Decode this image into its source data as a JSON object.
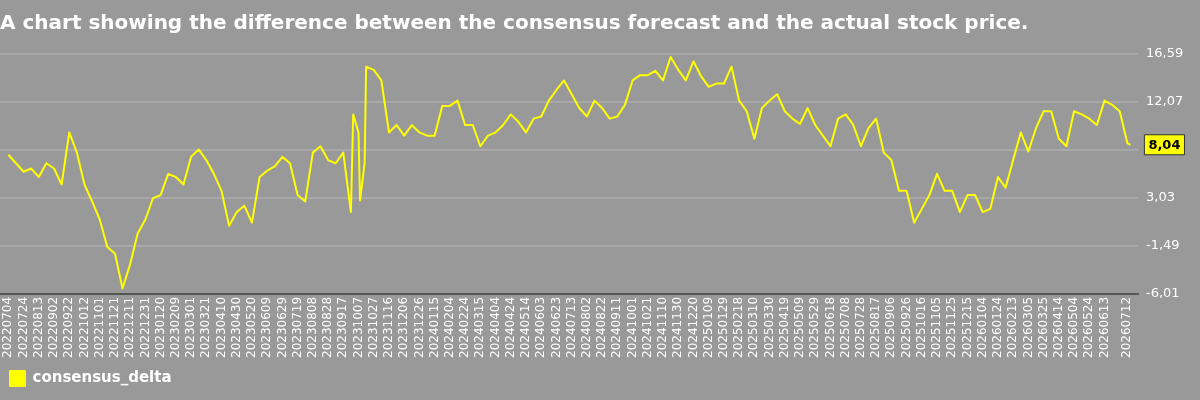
{
  "chart_data": {
    "type": "line",
    "title": "A chart showing the difference between the consensus forecast and the actual stock price.",
    "x": [
      "2022-07-04",
      "2022-07-14",
      "2022-07-24",
      "2022-08-03",
      "2022-08-13",
      "2022-08-23",
      "2022-09-02",
      "2022-09-12",
      "2022-09-22",
      "2022-10-02",
      "2022-10-12",
      "2022-10-22",
      "2022-11-01",
      "2022-11-11",
      "2022-11-21",
      "2022-12-01",
      "2022-12-11",
      "2022-12-21",
      "2022-12-31",
      "2023-01-10",
      "2023-01-20",
      "2023-01-30",
      "2023-02-09",
      "2023-02-19",
      "2023-03-01",
      "2023-03-11",
      "2023-03-21",
      "2023-03-31",
      "2023-04-10",
      "2023-04-20",
      "2023-04-30",
      "2023-05-10",
      "2023-05-20",
      "2023-05-30",
      "2023-06-09",
      "2023-06-19",
      "2023-06-29",
      "2023-07-09",
      "2023-07-19",
      "2023-07-29",
      "2023-08-08",
      "2023-08-18",
      "2023-08-28",
      "2023-09-07",
      "2023-09-17",
      "2023-09-27",
      "2023-09-30",
      "2023-10-07",
      "2023-10-09",
      "2023-10-15",
      "2023-10-17",
      "2023-10-27",
      "2023-11-06",
      "2023-11-16",
      "2023-11-26",
      "2023-12-06",
      "2023-12-16",
      "2023-12-26",
      "2024-01-05",
      "2024-01-15",
      "2024-01-25",
      "2024-02-04",
      "2024-02-14",
      "2024-02-24",
      "2024-03-05",
      "2024-03-15",
      "2024-03-25",
      "2024-04-04",
      "2024-04-14",
      "2024-04-24",
      "2024-05-04",
      "2024-05-14",
      "2024-05-24",
      "2024-06-03",
      "2024-06-13",
      "2024-06-23",
      "2024-07-03",
      "2024-07-13",
      "2024-07-23",
      "2024-08-02",
      "2024-08-12",
      "2024-08-22",
      "2024-09-01",
      "2024-09-11",
      "2024-09-21",
      "2024-10-01",
      "2024-10-11",
      "2024-10-21",
      "2024-10-31",
      "2024-11-10",
      "2024-11-20",
      "2024-11-30",
      "2024-12-10",
      "2024-12-20",
      "2024-12-30",
      "2025-01-09",
      "2025-01-19",
      "2025-01-29",
      "2025-02-08",
      "2025-02-18",
      "2025-02-28",
      "2025-03-10",
      "2025-03-20",
      "2025-03-30",
      "2025-04-09",
      "2025-04-19",
      "2025-04-29",
      "2025-05-09",
      "2025-05-19",
      "2025-05-29",
      "2025-06-08",
      "2025-06-18",
      "2025-06-28",
      "2025-07-08",
      "2025-07-18",
      "2025-07-28",
      "2025-08-07",
      "2025-08-17",
      "2025-08-27",
      "2025-09-06",
      "2025-09-16",
      "2025-09-26",
      "2025-10-06",
      "2025-10-16",
      "2025-10-26",
      "2025-11-05",
      "2025-11-15",
      "2025-11-25",
      "2025-12-05",
      "2025-12-15",
      "2025-12-25",
      "2026-01-04",
      "2026-01-14",
      "2026-01-24",
      "2026-02-03",
      "2026-02-13",
      "2026-02-23",
      "2026-03-05",
      "2026-03-15",
      "2026-03-25",
      "2026-04-04",
      "2026-04-14",
      "2026-04-24",
      "2026-05-04",
      "2026-05-14",
      "2026-05-24",
      "2026-06-03",
      "2026-06-13",
      "2026-06-23",
      "2026-07-03",
      "2026-07-13",
      "2026-07-17"
    ],
    "series": [
      {
        "name": "consensus_delta",
        "color": "#ffff00",
        "values": [
          7.1,
          6.3,
          5.5,
          5.8,
          5,
          6.3,
          5.8,
          4.3,
          9.2,
          7.3,
          4.3,
          2.7,
          1,
          -1.6,
          -2.2,
          -5.5,
          -3.2,
          -0.3,
          1,
          3,
          3.3,
          5.3,
          5,
          4.3,
          6.9,
          7.6,
          6.6,
          5.3,
          3.7,
          0.4,
          1.7,
          2.3,
          0.7,
          5,
          5.6,
          6,
          6.9,
          6.3,
          3.3,
          2.7,
          7.3,
          7.9,
          6.6,
          6.3,
          7.3,
          1.7,
          10.9,
          9.2,
          2.8,
          6.3,
          15.4,
          15.1,
          14.1,
          9.2,
          9.9,
          8.9,
          9.9,
          9.2,
          8.9,
          8.9,
          11.7,
          11.7,
          12.2,
          9.9,
          9.9,
          7.9,
          8.9,
          9.2,
          9.9,
          10.9,
          10.2,
          9.2,
          10.5,
          10.7,
          12.2,
          13.2,
          14.1,
          12.8,
          11.5,
          10.7,
          12.2,
          11.5,
          10.5,
          10.7,
          11.8,
          14.1,
          14.6,
          14.6,
          15,
          14.1,
          16.3,
          15.1,
          14.1,
          15.9,
          14.5,
          13.5,
          13.8,
          13.8,
          15.4,
          12.2,
          11.2,
          8.6,
          11.5,
          12.2,
          12.8,
          11.2,
          10.5,
          10,
          11.5,
          9.9,
          8.9,
          7.9,
          10.5,
          10.9,
          9.9,
          7.9,
          9.6,
          10.5,
          7.3,
          6.6,
          3.7,
          3.7,
          0.7,
          2,
          3.3,
          5.3,
          3.7,
          3.7,
          1.7,
          3.3,
          3.3,
          1.7,
          2,
          5,
          4,
          6.6,
          9.2,
          7.4,
          9.6,
          11.2,
          11.2,
          8.6,
          7.9,
          11.2,
          10.9,
          10.5,
          9.9,
          12.2,
          11.8,
          11.2,
          8.2,
          8.04
        ]
      }
    ],
    "xlim": [
      "2022-06-23",
      "2026-07-27"
    ],
    "xticks": [
      {
        "value": "2022-07-04",
        "label": "20220704"
      },
      {
        "value": "2022-07-24",
        "label": "20220724"
      },
      {
        "value": "2022-08-13",
        "label": "20220813"
      },
      {
        "value": "2022-09-02",
        "label": "20220902"
      },
      {
        "value": "2022-09-22",
        "label": "20220922"
      },
      {
        "value": "2022-10-12",
        "label": "20221012"
      },
      {
        "value": "2022-11-01",
        "label": "20221101"
      },
      {
        "value": "2022-11-21",
        "label": "20221121"
      },
      {
        "value": "2022-12-11",
        "label": "20221211"
      },
      {
        "value": "2022-12-31",
        "label": "20221231"
      },
      {
        "value": "2023-01-20",
        "label": "20230120"
      },
      {
        "value": "2023-02-09",
        "label": "20230209"
      },
      {
        "value": "2023-03-01",
        "label": "20230301"
      },
      {
        "value": "2023-03-21",
        "label": "20230321"
      },
      {
        "value": "2023-04-10",
        "label": "20230410"
      },
      {
        "value": "2023-04-30",
        "label": "20230430"
      },
      {
        "value": "2023-05-20",
        "label": "20230520"
      },
      {
        "value": "2023-06-09",
        "label": "20230609"
      },
      {
        "value": "2023-06-29",
        "label": "20230629"
      },
      {
        "value": "2023-07-19",
        "label": "20230719"
      },
      {
        "value": "2023-08-08",
        "label": "20230808"
      },
      {
        "value": "2023-08-28",
        "label": "20230828"
      },
      {
        "value": "2023-09-17",
        "label": "20230917"
      },
      {
        "value": "2023-10-07",
        "label": "20231007"
      },
      {
        "value": "2023-10-27",
        "label": "20231027"
      },
      {
        "value": "2023-11-16",
        "label": "20231116"
      },
      {
        "value": "2023-12-06",
        "label": "20231206"
      },
      {
        "value": "2023-12-26",
        "label": "20231226"
      },
      {
        "value": "2024-01-15",
        "label": "20240115"
      },
      {
        "value": "2024-02-04",
        "label": "20240204"
      },
      {
        "value": "2024-02-24",
        "label": "20240224"
      },
      {
        "value": "2024-03-15",
        "label": "20240315"
      },
      {
        "value": "2024-04-04",
        "label": "20240404"
      },
      {
        "value": "2024-04-24",
        "label": "20240424"
      },
      {
        "value": "2024-05-14",
        "label": "20240514"
      },
      {
        "value": "2024-06-03",
        "label": "20240603"
      },
      {
        "value": "2024-06-23",
        "label": "20240623"
      },
      {
        "value": "2024-07-13",
        "label": "20240713"
      },
      {
        "value": "2024-08-02",
        "label": "20240802"
      },
      {
        "value": "2024-08-22",
        "label": "20240822"
      },
      {
        "value": "2024-09-11",
        "label": "20240911"
      },
      {
        "value": "2024-10-01",
        "label": "20241001"
      },
      {
        "value": "2024-10-21",
        "label": "20241021"
      },
      {
        "value": "2024-11-10",
        "label": "20241110"
      },
      {
        "value": "2024-11-30",
        "label": "20241130"
      },
      {
        "value": "2024-12-20",
        "label": "20241220"
      },
      {
        "value": "2025-01-09",
        "label": "20250109"
      },
      {
        "value": "2025-01-29",
        "label": "20250129"
      },
      {
        "value": "2025-02-18",
        "label": "20250218"
      },
      {
        "value": "2025-03-10",
        "label": "20250310"
      },
      {
        "value": "2025-03-30",
        "label": "20250330"
      },
      {
        "value": "2025-04-19",
        "label": "20250419"
      },
      {
        "value": "2025-05-09",
        "label": "20250509"
      },
      {
        "value": "2025-05-29",
        "label": "20250529"
      },
      {
        "value": "2025-06-18",
        "label": "20250618"
      },
      {
        "value": "2025-07-08",
        "label": "20250708"
      },
      {
        "value": "2025-07-28",
        "label": "20250728"
      },
      {
        "value": "2025-08-17",
        "label": "20250817"
      },
      {
        "value": "2025-09-06",
        "label": "20250906"
      },
      {
        "value": "2025-09-26",
        "label": "20250926"
      },
      {
        "value": "2025-10-16",
        "label": "20251016"
      },
      {
        "value": "2025-11-05",
        "label": "20251105"
      },
      {
        "value": "2025-11-25",
        "label": "20251125"
      },
      {
        "value": "2025-12-15",
        "label": "20251215"
      },
      {
        "value": "2026-01-04",
        "label": "20260104"
      },
      {
        "value": "2026-01-24",
        "label": "20260124"
      },
      {
        "value": "2026-02-13",
        "label": "20260213"
      },
      {
        "value": "2026-03-05",
        "label": "20260305"
      },
      {
        "value": "2026-03-25",
        "label": "20260325"
      },
      {
        "value": "2026-04-14",
        "label": "20260414"
      },
      {
        "value": "2026-05-04",
        "label": "20260504"
      },
      {
        "value": "2026-05-24",
        "label": "20260524"
      },
      {
        "value": "2026-06-13",
        "label": "20260613"
      },
      {
        "value": "2026-07-12",
        "label": "20260712"
      }
    ],
    "ylim": [
      -6.01,
      16.59
    ],
    "yticks": [
      {
        "value": -6.01,
        "label": "-6,01"
      },
      {
        "value": -1.49,
        "label": "-1,49"
      },
      {
        "value": 3.03,
        "label": "3,03"
      },
      {
        "value": 7.55,
        "label": null
      },
      {
        "value": 12.07,
        "label": "12,07"
      },
      {
        "value": 16.59,
        "label": "16,59"
      }
    ],
    "annotations": [
      {
        "text": "8,04",
        "x": "2026-07-17",
        "y": 8.04
      }
    ],
    "grid": "y",
    "legend": "bottom left",
    "marker": "none",
    "line_style": "solid"
  }
}
